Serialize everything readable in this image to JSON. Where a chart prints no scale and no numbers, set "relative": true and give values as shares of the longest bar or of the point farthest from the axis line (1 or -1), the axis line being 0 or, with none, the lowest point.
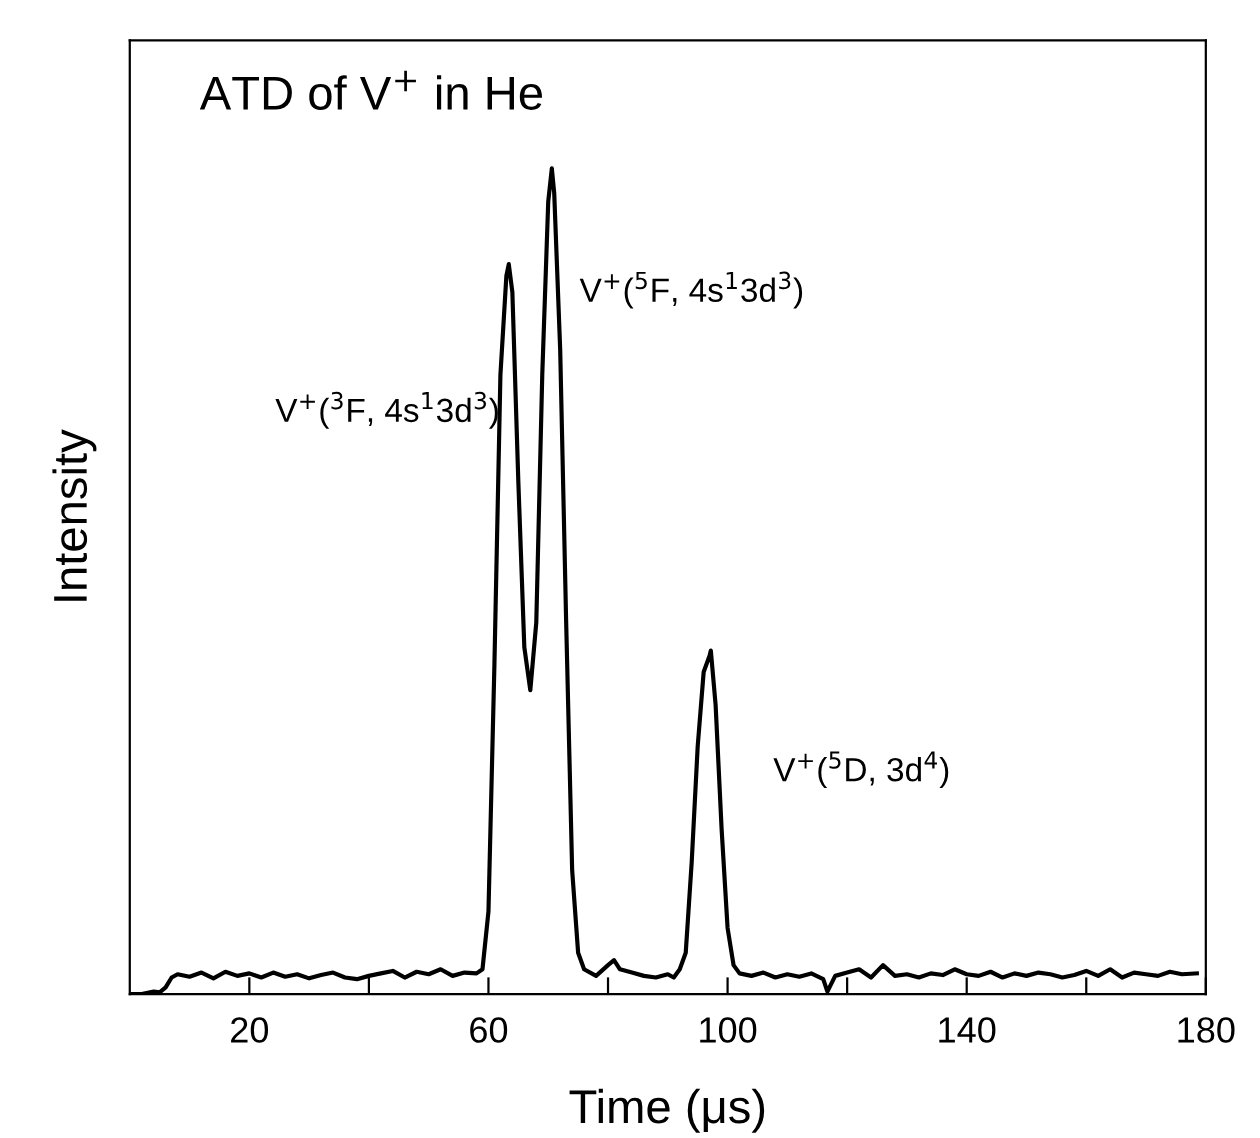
{
  "chart_data": {
    "type": "line",
    "title": "ATD of V$^{+}$ in He",
    "xlabel": "Time (μs)",
    "ylabel": "Intensity",
    "relative": true,
    "tick_labels": "x",
    "grid": false,
    "legend": false,
    "marker": "none",
    "line_style": "solid",
    "xlim": [
      0,
      180
    ],
    "xticks": [
      20,
      {
        "value": 40,
        "label": null
      },
      60,
      {
        "value": 80,
        "label": null
      },
      100,
      {
        "value": 120,
        "label": null
      },
      140,
      {
        "value": 160,
        "label": null
      },
      180
    ],
    "annotations": [
      "V$^{+}$($^{3}$F, 4s$^{1}$3d$^{3}$)",
      "V$^{+}$($^{5}$F, 4s$^{1}$3d$^{3}$)",
      "V$^{+}$($^{5}$D, 3d$^{4}$)"
    ],
    "series": [
      {
        "color": "#000000",
        "x": [
          0,
          2,
          4,
          5,
          6,
          7,
          8,
          10,
          12,
          14,
          16,
          18,
          20,
          22,
          24,
          26,
          28,
          30,
          32,
          34,
          36,
          38,
          40,
          42,
          44,
          46,
          48,
          50,
          52,
          54,
          56,
          58,
          59,
          60,
          61,
          62,
          63,
          63.4,
          64,
          65,
          66,
          67,
          68,
          69,
          70,
          70.6,
          71,
          72,
          73,
          74,
          75,
          76,
          78,
          80,
          81,
          82,
          84,
          86,
          88,
          90,
          91,
          92,
          93,
          94,
          95,
          96,
          97,
          97.2,
          98,
          99,
          100,
          101,
          102,
          104,
          106,
          108,
          110,
          112,
          114,
          116,
          116.7,
          118,
          120,
          122,
          124,
          126,
          128,
          130,
          132,
          134,
          136,
          138,
          140,
          142,
          144,
          146,
          148,
          150,
          152,
          154,
          156,
          158,
          160,
          162,
          164,
          166,
          168,
          170,
          172,
          174,
          176,
          178.5
        ],
        "values": [
          0.0,
          0.0,
          0.003,
          0.002,
          0.008,
          0.02,
          0.024,
          0.021,
          0.026,
          0.019,
          0.027,
          0.022,
          0.025,
          0.02,
          0.026,
          0.021,
          0.024,
          0.019,
          0.023,
          0.026,
          0.02,
          0.018,
          0.022,
          0.025,
          0.028,
          0.02,
          0.027,
          0.024,
          0.03,
          0.022,
          0.026,
          0.025,
          0.03,
          0.1,
          0.4,
          0.75,
          0.87,
          0.884,
          0.85,
          0.62,
          0.42,
          0.368,
          0.45,
          0.75,
          0.96,
          1.0,
          0.97,
          0.78,
          0.45,
          0.15,
          0.05,
          0.03,
          0.022,
          0.035,
          0.041,
          0.03,
          0.026,
          0.022,
          0.02,
          0.024,
          0.02,
          0.03,
          0.05,
          0.16,
          0.3,
          0.39,
          0.41,
          0.416,
          0.35,
          0.2,
          0.08,
          0.035,
          0.025,
          0.022,
          0.026,
          0.02,
          0.024,
          0.021,
          0.025,
          0.018,
          0.003,
          0.022,
          0.026,
          0.03,
          0.02,
          0.035,
          0.022,
          0.024,
          0.02,
          0.025,
          0.023,
          0.03,
          0.024,
          0.022,
          0.027,
          0.02,
          0.025,
          0.022,
          0.026,
          0.024,
          0.02,
          0.023,
          0.028,
          0.022,
          0.03,
          0.02,
          0.026,
          0.024,
          0.022,
          0.027,
          0.024,
          0.025
        ]
      }
    ]
  }
}
